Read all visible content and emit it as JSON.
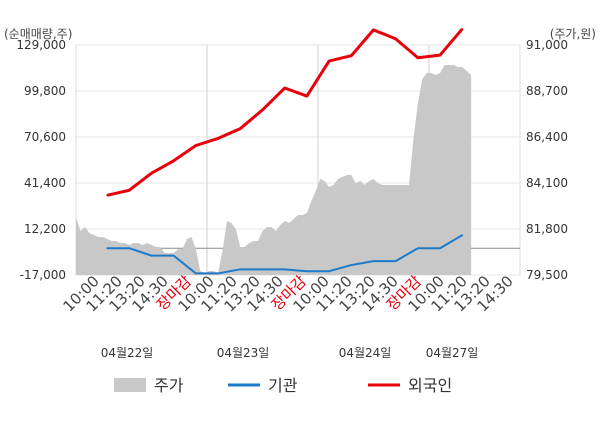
{
  "chart_data": {
    "type": "line",
    "left_axis_unit": "(순매매량,주)",
    "right_axis_unit": "(주가,원)",
    "left_axis": {
      "ticks": [
        129000,
        99800,
        70600,
        41400,
        12200,
        -17000
      ],
      "tick_labels": [
        "129,000",
        "99,800",
        "70,600",
        "41,400",
        "12,200",
        "-17,000"
      ],
      "ylim": [
        -17000,
        129000
      ]
    },
    "right_axis": {
      "ticks": [
        91000,
        88700,
        86400,
        84100,
        81800,
        79500
      ],
      "tick_labels": [
        "91,000",
        "88,700",
        "86,400",
        "84,100",
        "81,800",
        "79,500"
      ],
      "ylim": [
        79500,
        91000
      ]
    },
    "x_tick_labels": [
      "10:00",
      "11:20",
      "13:20",
      "14:30",
      "장마감",
      "10:00",
      "11:20",
      "13:20",
      "14:30",
      "장마감",
      "10:00",
      "11:20",
      "13:20",
      "14:30",
      "장마감",
      "10:00",
      "11:20",
      "13:20",
      "14:30"
    ],
    "x_tick_is_close": [
      false,
      false,
      false,
      false,
      true,
      false,
      false,
      false,
      false,
      true,
      false,
      false,
      false,
      false,
      true,
      false,
      false,
      false,
      false
    ],
    "dates": [
      "04월22일",
      "04월23일",
      "04월24일",
      "04월27일"
    ],
    "day_boundaries": [
      4.5,
      9.5,
      14.5
    ],
    "zero_line": 0,
    "series": [
      {
        "name": "외국인",
        "kind": "line",
        "axis": "left",
        "color": "#e8000b",
        "x": [
          0,
          1,
          2,
          3,
          4,
          5,
          6,
          7,
          8,
          9,
          10,
          11,
          12,
          13,
          14,
          15,
          16
        ],
        "values": [
          33600,
          36800,
          47600,
          55500,
          65200,
          69700,
          75900,
          87800,
          101700,
          96600,
          118800,
          122200,
          138600,
          132900,
          120900,
          122600,
          139200
        ]
      },
      {
        "name": "기관",
        "kind": "line",
        "axis": "left",
        "color": "#1d7ac9",
        "x": [
          0,
          1,
          2,
          3,
          4,
          5,
          6,
          7,
          8,
          9,
          10,
          11,
          12,
          13,
          14,
          15,
          16
        ],
        "values": [
          0,
          0,
          -4700,
          -4700,
          -16000,
          -16000,
          -13400,
          -13400,
          -13400,
          -14600,
          -14600,
          -10700,
          -8200,
          -8200,
          0,
          0,
          8300
        ]
      },
      {
        "name": "주가",
        "kind": "area",
        "axis": "right",
        "color": "#c8c8c8",
        "x": [
          -1.4,
          -1.2,
          -1.0,
          -0.8,
          -0.6,
          -0.4,
          -0.2,
          0.0,
          0.2,
          0.4,
          0.6,
          0.8,
          1.0,
          1.2,
          1.4,
          1.6,
          1.8,
          2.0,
          2.2,
          2.4,
          2.6,
          2.8,
          3.0,
          3.2,
          3.4,
          3.6,
          3.8,
          4.0,
          4.2,
          4.4,
          4.6,
          4.8,
          5.0,
          5.2,
          5.4,
          5.6,
          5.8,
          6.0,
          6.2,
          6.4,
          6.6,
          6.8,
          7.0,
          7.2,
          7.4,
          7.6,
          7.8,
          8.0,
          8.2,
          8.4,
          8.6,
          8.8,
          9.0,
          9.2,
          9.4,
          9.6,
          9.8,
          10.0,
          10.2,
          10.4,
          10.6,
          10.8,
          11.0,
          11.2,
          11.4,
          11.6,
          11.8,
          12.0,
          12.2,
          12.4,
          12.6,
          12.8,
          13.0,
          13.2,
          13.4,
          13.6,
          13.8,
          14.0,
          14.2,
          14.4,
          14.6,
          14.8,
          15.0,
          15.2,
          15.4,
          15.6,
          15.8,
          16.0,
          16.2,
          16.4
        ],
        "values": [
          82400,
          81700,
          81900,
          81600,
          81500,
          81400,
          81400,
          81300,
          81200,
          81200,
          81100,
          81100,
          81000,
          81100,
          81100,
          81000,
          81100,
          81000,
          80900,
          80900,
          80600,
          80600,
          80600,
          80800,
          80800,
          81300,
          81400,
          80800,
          79700,
          79600,
          79700,
          79700,
          79600,
          80700,
          82200,
          82100,
          81800,
          80900,
          80900,
          81100,
          81200,
          81200,
          81700,
          81900,
          81900,
          81700,
          82000,
          82200,
          82100,
          82300,
          82500,
          82500,
          82600,
          83200,
          83700,
          84300,
          84200,
          83900,
          84000,
          84300,
          84400,
          84500,
          84500,
          84100,
          84200,
          84000,
          84200,
          84300,
          84100,
          84000,
          84000,
          84000,
          84000,
          84000,
          84000,
          84000,
          86300,
          88100,
          89300,
          89600,
          89600,
          89500,
          89600,
          90000,
          90000,
          90000,
          89900,
          89900,
          89700,
          89500
        ]
      }
    ],
    "xlim": [
      -1.4,
      18.6
    ],
    "grid": true,
    "legend_position": "bottom"
  },
  "legend": [
    {
      "label": "주가",
      "swatch": "area",
      "color": "#c8c8c8"
    },
    {
      "label": "기관",
      "swatch": "line",
      "color": "#1d7ac9"
    },
    {
      "label": "외국인",
      "swatch": "line",
      "color": "#e8000b"
    }
  ]
}
